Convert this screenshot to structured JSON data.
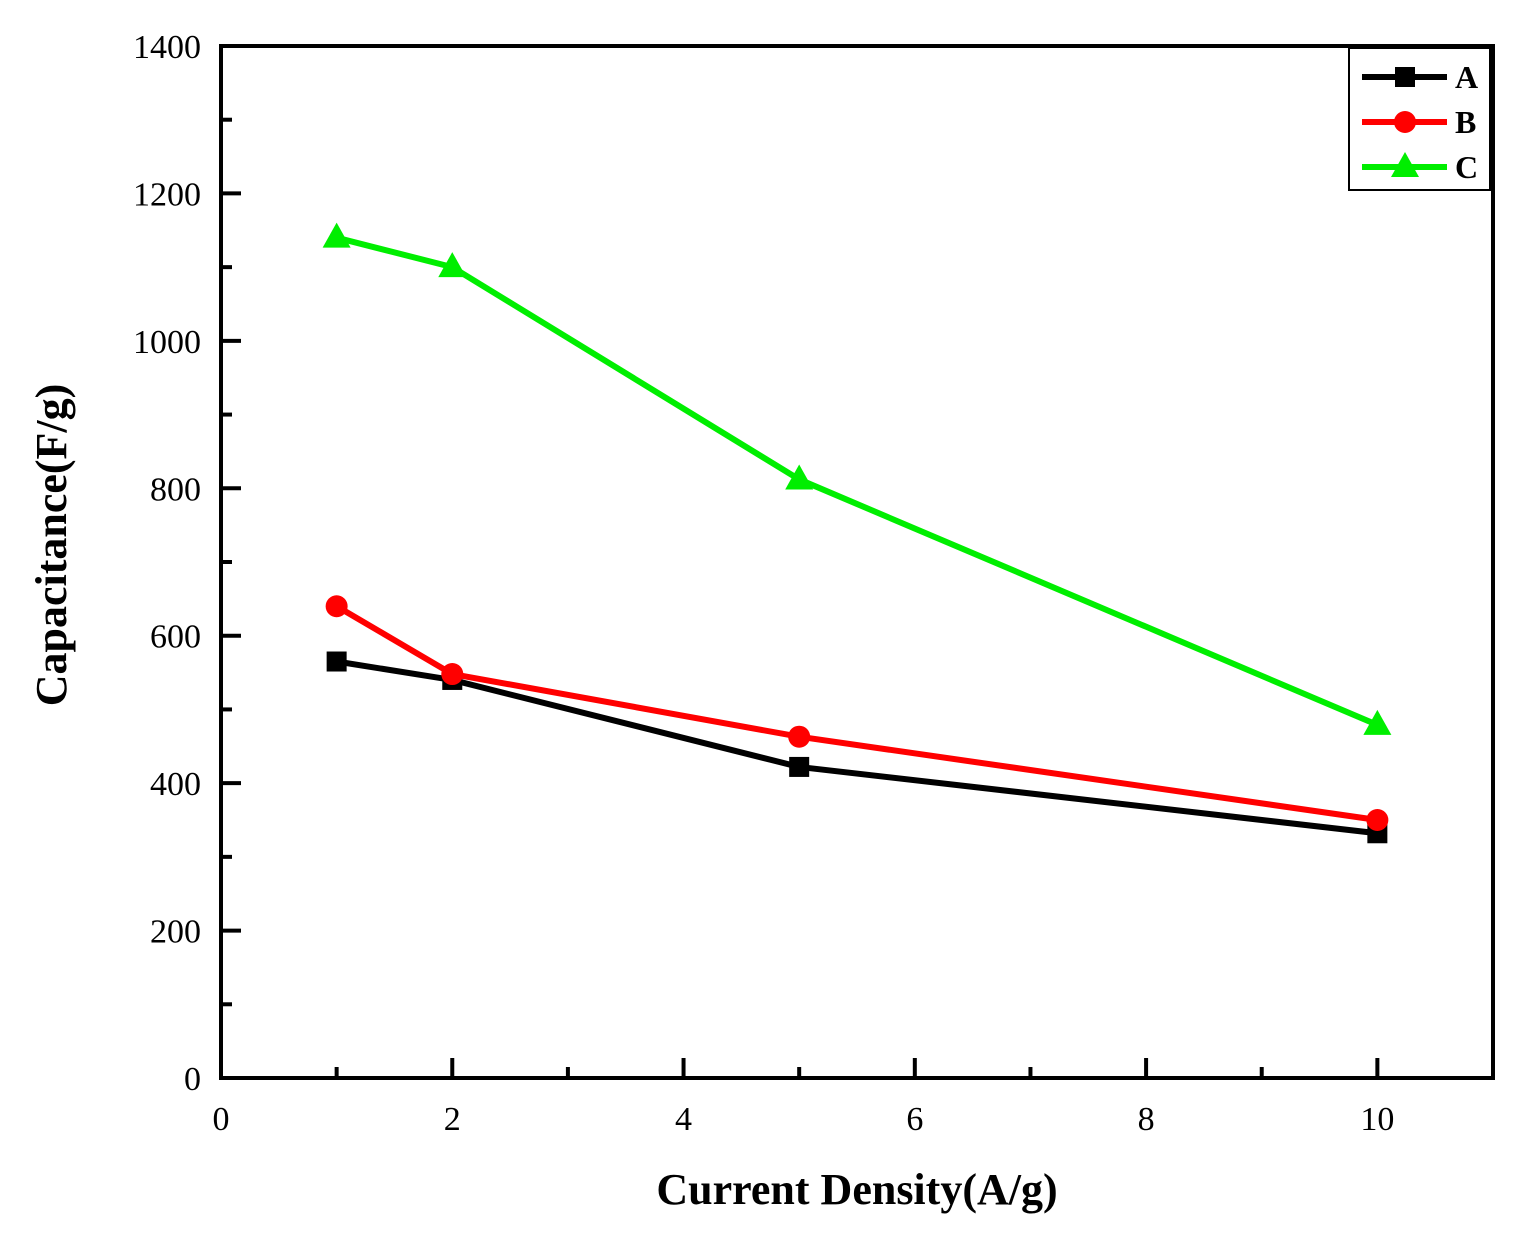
{
  "chart_data": {
    "type": "line",
    "title": "",
    "xlabel": "Current Density(A/g)",
    "ylabel": "Capacitance(F/g)",
    "xlim": [
      0,
      11
    ],
    "ylim": [
      0,
      1400
    ],
    "x_ticks": [
      0,
      2,
      4,
      6,
      8,
      10
    ],
    "x_tick_labels": [
      "0",
      "2",
      "4",
      "6",
      "8",
      "10"
    ],
    "y_ticks": [
      0,
      200,
      400,
      600,
      800,
      1000,
      1200,
      1400
    ],
    "y_tick_labels": [
      "0",
      "200",
      "400",
      "600",
      "800",
      "1000",
      "1200",
      "1400"
    ],
    "x_minor_ticks": [
      1,
      3,
      5,
      7,
      9
    ],
    "y_minor_ticks": [
      100,
      300,
      500,
      700,
      900,
      1100,
      1300
    ],
    "grid": false,
    "legend_position": "top-right",
    "x": [
      1,
      2,
      5,
      10
    ],
    "series": [
      {
        "name": "A",
        "values": [
          565,
          540,
          422,
          332
        ],
        "color": "#000000",
        "marker": "square"
      },
      {
        "name": "B",
        "values": [
          640,
          548,
          463,
          350
        ],
        "color": "#ff0000",
        "marker": "circle"
      },
      {
        "name": "C",
        "values": [
          1140,
          1100,
          812,
          479
        ],
        "color": "#00ee00",
        "marker": "triangle"
      }
    ]
  }
}
